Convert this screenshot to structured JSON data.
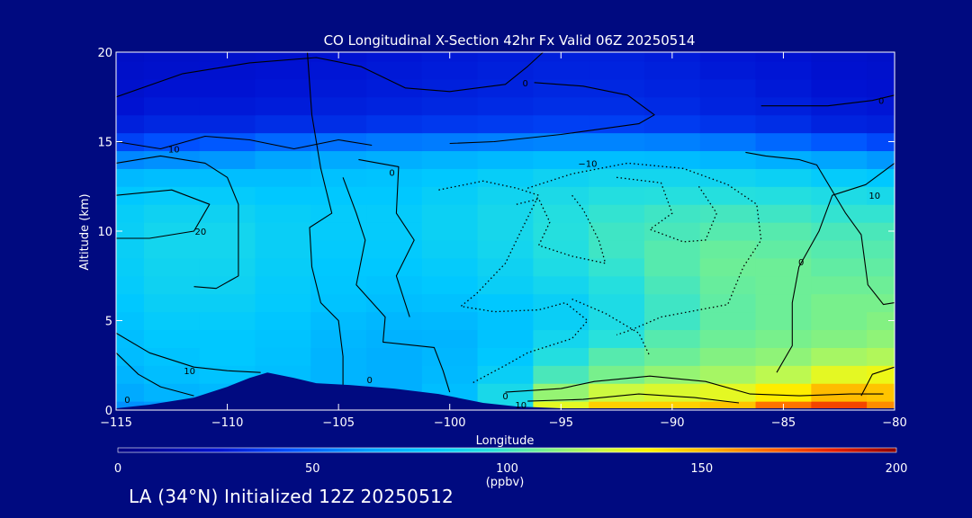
{
  "chart_data": {
    "type": "heatmap",
    "title": "CO Longitudinal X-Section 42hr  Fx Valid 06Z 20250514",
    "xlabel": "Longitude",
    "ylabel": "Altitude (km)",
    "xlim": [
      -115,
      -80
    ],
    "ylim": [
      0,
      20
    ],
    "x_ticks": [
      -115,
      -110,
      -105,
      -100,
      -95,
      -90,
      -85,
      -80
    ],
    "y_ticks": [
      0,
      5,
      10,
      15,
      20
    ],
    "x_tick_labels": [
      "−115",
      "−110",
      "−105",
      "−100",
      "−95",
      "−90",
      "−85",
      "−80"
    ],
    "y_tick_labels": [
      "0",
      "5",
      "10",
      "15",
      "20"
    ],
    "colorbar": {
      "min": 0,
      "max": 200,
      "ticks": [
        0,
        50,
        100,
        150,
        200
      ],
      "tick_labels": [
        "0",
        "50",
        "100",
        "150",
        "200"
      ],
      "units": "(ppbv)"
    },
    "altitude_levels_km": [
      0,
      1,
      2,
      3,
      4,
      5,
      6,
      7,
      8,
      9,
      10,
      11,
      12,
      13,
      14,
      15,
      16,
      17,
      18,
      19,
      20
    ],
    "longitude_columns": [
      -115,
      -112.5,
      -110,
      -107.5,
      -105,
      -102.5,
      -100,
      -97.5,
      -95,
      -92.5,
      -90,
      -87.5,
      -85,
      -82.5,
      -80
    ],
    "co_ppbv": [
      [
        60,
        62,
        62,
        62,
        65,
        66,
        70,
        90,
        130,
        145,
        145,
        148,
        165,
        175,
        160
      ],
      [
        68,
        72,
        74,
        74,
        72,
        70,
        76,
        90,
        115,
        125,
        128,
        130,
        138,
        150,
        148
      ],
      [
        72,
        76,
        78,
        76,
        72,
        70,
        74,
        84,
        102,
        110,
        115,
        118,
        122,
        130,
        132
      ],
      [
        75,
        78,
        80,
        77,
        72,
        70,
        73,
        80,
        94,
        104,
        108,
        112,
        114,
        118,
        120
      ],
      [
        76,
        80,
        80,
        78,
        73,
        71,
        72,
        78,
        88,
        96,
        104,
        108,
        110,
        112,
        114
      ],
      [
        78,
        82,
        82,
        79,
        75,
        73,
        74,
        78,
        84,
        92,
        100,
        106,
        108,
        110,
        112
      ],
      [
        80,
        84,
        84,
        81,
        78,
        76,
        77,
        80,
        84,
        92,
        100,
        106,
        108,
        110,
        110
      ],
      [
        82,
        86,
        86,
        82,
        79,
        78,
        80,
        84,
        88,
        95,
        102,
        107,
        108,
        108,
        108
      ],
      [
        83,
        87,
        87,
        83,
        80,
        80,
        82,
        86,
        92,
        98,
        104,
        108,
        108,
        106,
        106
      ],
      [
        84,
        88,
        88,
        84,
        81,
        81,
        84,
        88,
        94,
        100,
        104,
        107,
        106,
        104,
        104
      ],
      [
        84,
        88,
        88,
        84,
        82,
        82,
        85,
        89,
        95,
        100,
        102,
        104,
        104,
        102,
        102
      ],
      [
        83,
        86,
        86,
        83,
        82,
        82,
        85,
        89,
        94,
        98,
        100,
        101,
        100,
        98,
        98
      ],
      [
        80,
        82,
        82,
        80,
        80,
        80,
        83,
        87,
        91,
        94,
        95,
        95,
        94,
        92,
        90
      ],
      [
        74,
        76,
        76,
        76,
        77,
        78,
        80,
        83,
        86,
        88,
        88,
        87,
        85,
        82,
        80
      ],
      [
        58,
        60,
        62,
        66,
        68,
        70,
        72,
        74,
        76,
        76,
        75,
        73,
        70,
        66,
        62
      ],
      [
        40,
        44,
        46,
        50,
        52,
        54,
        55,
        56,
        57,
        57,
        56,
        54,
        50,
        46,
        42
      ],
      [
        30,
        32,
        32,
        34,
        34,
        36,
        37,
        38,
        39,
        39,
        38,
        36,
        34,
        31,
        30
      ],
      [
        26,
        28,
        28,
        29,
        30,
        31,
        32,
        33,
        34,
        34,
        33,
        31,
        30,
        28,
        27
      ],
      [
        24,
        26,
        26,
        27,
        28,
        29,
        30,
        31,
        32,
        32,
        31,
        30,
        28,
        26,
        25
      ],
      [
        23,
        24,
        25,
        26,
        27,
        28,
        29,
        30,
        31,
        31,
        30,
        28,
        27,
        25,
        24
      ],
      [
        22,
        23,
        24,
        25,
        26,
        27,
        28,
        29,
        30,
        30,
        29,
        27,
        26,
        24,
        23
      ]
    ],
    "terrain_km": [
      [
        -115,
        0.1
      ],
      [
        -113.5,
        0.3
      ],
      [
        -111.5,
        0.7
      ],
      [
        -110,
        1.3
      ],
      [
        -109,
        1.8
      ],
      [
        -108.2,
        2.1
      ],
      [
        -107,
        1.8
      ],
      [
        -106,
        1.5
      ],
      [
        -104.5,
        1.4
      ],
      [
        -102.5,
        1.2
      ],
      [
        -100.5,
        0.9
      ],
      [
        -98.5,
        0.4
      ],
      [
        -97,
        0.2
      ],
      [
        -95,
        0.1
      ],
      [
        -80,
        0.1
      ]
    ],
    "contour_labels": [
      {
        "text": "0",
        "lon": -96.6,
        "alt": 18.3
      },
      {
        "text": "0",
        "lon": -80.6,
        "alt": 17.3
      },
      {
        "text": "10",
        "lon": -112.4,
        "alt": 14.6
      },
      {
        "text": "−10",
        "lon": -93.8,
        "alt": 13.8
      },
      {
        "text": "0",
        "lon": -102.6,
        "alt": 13.3
      },
      {
        "text": "10",
        "lon": -80.9,
        "alt": 12.0
      },
      {
        "text": "20",
        "lon": -111.2,
        "alt": 10.0
      },
      {
        "text": "0",
        "lon": -84.2,
        "alt": 8.3
      },
      {
        "text": "10",
        "lon": -111.7,
        "alt": 2.2
      },
      {
        "text": "0",
        "lon": -103.6,
        "alt": 1.7
      },
      {
        "text": "0",
        "lon": -97.5,
        "alt": 0.8
      },
      {
        "text": "10",
        "lon": -96.8,
        "alt": 0.3
      },
      {
        "text": "0",
        "lon": -114.5,
        "alt": 0.6
      }
    ]
  },
  "footer": {
    "text": "LA (34°N) Initialized 12Z 20250512"
  }
}
